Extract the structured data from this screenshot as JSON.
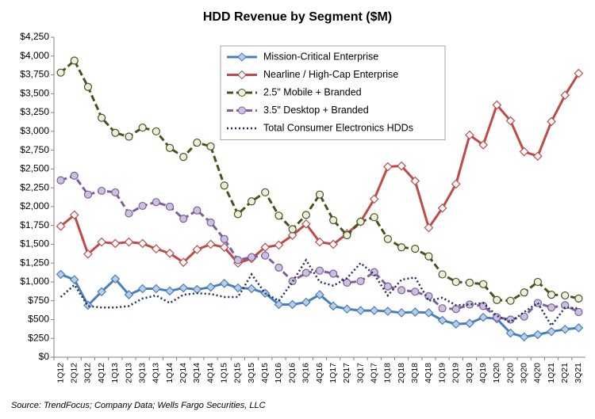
{
  "chart_data": {
    "type": "line",
    "title": "HDD Revenue by Segment ($M)",
    "source": "Source:  TrendFocus; Company Data; Wells Fargo Securities, LLC",
    "categories": [
      "1Q12",
      "2Q12",
      "3Q12",
      "4Q12",
      "1Q13",
      "2Q13",
      "3Q13",
      "4Q13",
      "1Q14",
      "2Q14",
      "3Q14",
      "4Q14",
      "1Q15",
      "2Q15",
      "3Q15",
      "4Q15",
      "1Q16",
      "2Q16",
      "3Q16",
      "4Q16",
      "1Q17",
      "2Q17",
      "3Q17",
      "4Q17",
      "1Q18",
      "2Q18",
      "3Q18",
      "4Q18",
      "1Q19",
      "2Q19",
      "3Q19",
      "4Q19",
      "1Q20",
      "2Q20",
      "3Q20",
      "4Q20",
      "1Q21",
      "2Q21",
      "3Q21"
    ],
    "series": [
      {
        "name": "Mission-Critical Enterprise",
        "color": "#4a7ebb",
        "marker_fill": "#b9cde5",
        "marker": "diamond",
        "dash": "solid",
        "values": [
          1100,
          1030,
          690,
          870,
          1040,
          830,
          910,
          910,
          880,
          920,
          900,
          930,
          980,
          920,
          910,
          850,
          700,
          700,
          730,
          830,
          680,
          640,
          620,
          620,
          610,
          590,
          600,
          590,
          490,
          440,
          450,
          530,
          510,
          320,
          270,
          300,
          340,
          370,
          390
        ]
      },
      {
        "name": "Nearline / High-Cap Enterprise",
        "color": "#be4b48",
        "marker_fill": "#ffffff",
        "marker": "diamond",
        "dash": "solid",
        "values": [
          1740,
          1890,
          1370,
          1530,
          1510,
          1530,
          1510,
          1440,
          1380,
          1260,
          1430,
          1500,
          1460,
          1250,
          1310,
          1460,
          1490,
          1620,
          1770,
          1530,
          1500,
          1640,
          1800,
          2100,
          2530,
          2540,
          2340,
          1720,
          1980,
          2300,
          2950,
          2820,
          3350,
          3140,
          2730,
          2670,
          3130,
          3480,
          3770
        ]
      },
      {
        "name": "2.5\" Mobile + Branded",
        "color": "#4a521c",
        "marker_fill": "#ebf1de",
        "marker": "circle",
        "dash": "dashed",
        "values": [
          3780,
          3940,
          3590,
          3180,
          2980,
          2930,
          3050,
          3000,
          2780,
          2660,
          2850,
          2800,
          2280,
          1900,
          2070,
          2190,
          1880,
          1700,
          1890,
          2160,
          1820,
          1620,
          1800,
          1860,
          1570,
          1460,
          1440,
          1340,
          1100,
          1000,
          990,
          970,
          760,
          750,
          860,
          1000,
          830,
          820,
          780
        ]
      },
      {
        "name": "3.5\" Desktop + Branded",
        "color": "#7c5fa0",
        "marker_fill": "#ccc1da",
        "marker": "circle",
        "dash": "dashed",
        "values": [
          2350,
          2410,
          2160,
          2210,
          2190,
          1910,
          2010,
          2060,
          2000,
          1840,
          1950,
          1790,
          1570,
          1290,
          1330,
          1350,
          1190,
          1010,
          1120,
          1150,
          1110,
          990,
          1010,
          1130,
          940,
          890,
          870,
          810,
          650,
          640,
          700,
          680,
          530,
          500,
          540,
          720,
          660,
          690,
          600
        ]
      },
      {
        "name": "Total Consumer Electronics HDDs",
        "color": "#1f2f5e",
        "marker": "none",
        "dash": "dotted",
        "values": [
          800,
          960,
          680,
          660,
          660,
          680,
          780,
          820,
          720,
          830,
          850,
          840,
          800,
          800,
          1100,
          850,
          750,
          1000,
          1290,
          1000,
          950,
          1050,
          1250,
          1100,
          820,
          1030,
          1060,
          750,
          790,
          690,
          700,
          720,
          550,
          470,
          600,
          720,
          420,
          660,
          650
        ]
      }
    ],
    "ylim": [
      0,
      4250
    ],
    "yticks": [
      {
        "value": 0,
        "label": "$0"
      },
      {
        "value": 250,
        "label": "$250"
      },
      {
        "value": 500,
        "label": "$500"
      },
      {
        "value": 750,
        "label": "$750"
      },
      {
        "value": 1000,
        "label": "$1,000"
      },
      {
        "value": 1250,
        "label": "$1,250"
      },
      {
        "value": 1500,
        "label": "$1,500"
      },
      {
        "value": 1750,
        "label": "$1,750"
      },
      {
        "value": 2000,
        "label": "$2,000"
      },
      {
        "value": 2250,
        "label": "$2,250"
      },
      {
        "value": 2500,
        "label": "$2,500"
      },
      {
        "value": 2750,
        "label": "$2,750"
      },
      {
        "value": 3000,
        "label": "$3,000"
      },
      {
        "value": 3250,
        "label": "$3,250"
      },
      {
        "value": 3500,
        "label": "$3,500"
      },
      {
        "value": 3750,
        "label": "$3,750"
      },
      {
        "value": 4000,
        "label": "$4,000"
      },
      {
        "value": 4250,
        "label": "$4,250"
      }
    ],
    "grid": false,
    "legend": "top"
  }
}
